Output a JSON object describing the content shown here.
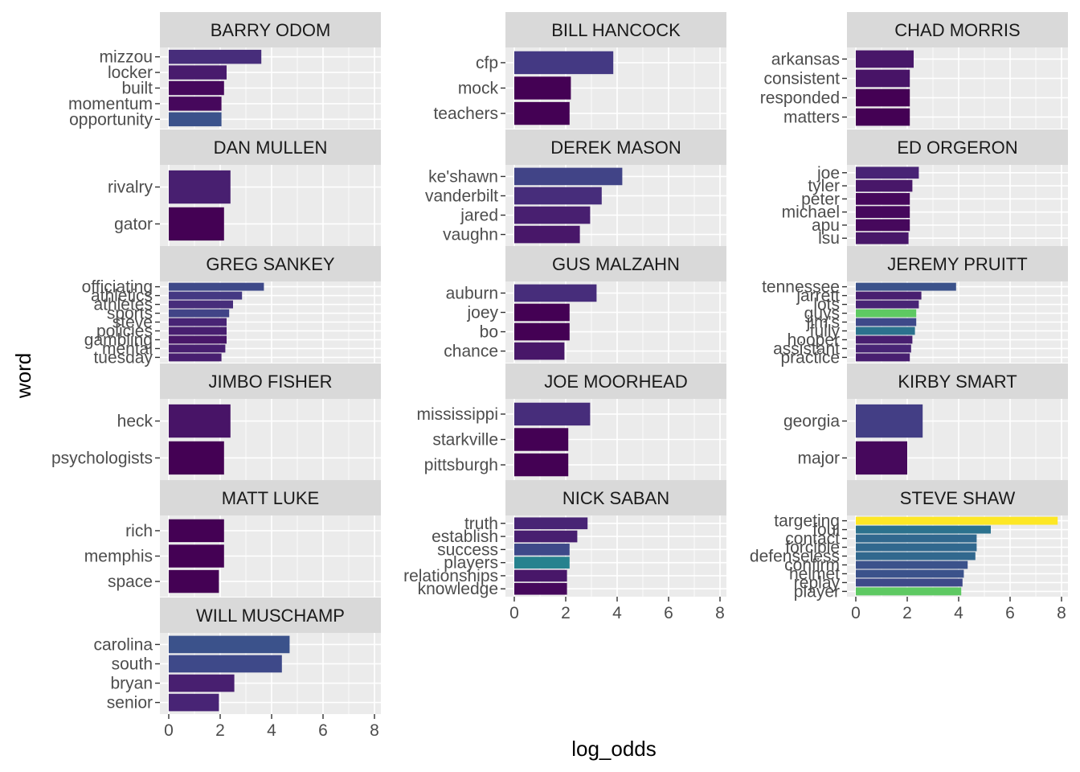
{
  "chart_data": {
    "type": "bar",
    "orientation": "horizontal",
    "xlabel": "log_odds",
    "ylabel": "word",
    "xlim": [
      0,
      8
    ],
    "x_ticks": [
      "0",
      "2",
      "4",
      "6",
      "8"
    ],
    "grid": true,
    "legend": "none",
    "color_scale": {
      "name": "viridis",
      "stops": [
        "#440154",
        "#482878",
        "#3e4989",
        "#31688e",
        "#26828e",
        "#1f9e89",
        "#35b779",
        "#6ece58",
        "#b5de2b",
        "#fde725"
      ]
    },
    "facets": [
      {
        "name": "BARRY ODOM",
        "bars": [
          {
            "word": "mizzou",
            "value": 3.6,
            "color": "#472d7b"
          },
          {
            "word": "locker",
            "value": 2.25,
            "color": "#481b6d"
          },
          {
            "word": "built",
            "value": 2.15,
            "color": "#46085c"
          },
          {
            "word": "momentum",
            "value": 2.05,
            "color": "#46085c"
          },
          {
            "word": "opportunity",
            "value": 2.05,
            "color": "#3b528b"
          }
        ]
      },
      {
        "name": "BILL HANCOCK",
        "bars": [
          {
            "word": "cfp",
            "value": 3.85,
            "color": "#443983"
          },
          {
            "word": "mock",
            "value": 2.2,
            "color": "#440154"
          },
          {
            "word": "teachers",
            "value": 2.15,
            "color": "#440154"
          }
        ]
      },
      {
        "name": "CHAD MORRIS",
        "bars": [
          {
            "word": "arkansas",
            "value": 2.25,
            "color": "#481769"
          },
          {
            "word": "consistent",
            "value": 2.1,
            "color": "#481467"
          },
          {
            "word": "responded",
            "value": 2.1,
            "color": "#440154"
          },
          {
            "word": "matters",
            "value": 2.1,
            "color": "#440154"
          }
        ]
      },
      {
        "name": "DAN MULLEN",
        "bars": [
          {
            "word": "rivalry",
            "value": 2.4,
            "color": "#481f70"
          },
          {
            "word": "gator",
            "value": 2.15,
            "color": "#440154"
          }
        ]
      },
      {
        "name": "DEREK MASON",
        "bars": [
          {
            "word": "ke'shawn",
            "value": 4.2,
            "color": "#414487"
          },
          {
            "word": "vanderbilt",
            "value": 3.4,
            "color": "#472d7b"
          },
          {
            "word": "jared",
            "value": 2.95,
            "color": "#481f70"
          },
          {
            "word": "vaughn",
            "value": 2.55,
            "color": "#481769"
          }
        ]
      },
      {
        "name": "ED ORGERON",
        "bars": [
          {
            "word": "joe",
            "value": 2.45,
            "color": "#482475"
          },
          {
            "word": "tyler",
            "value": 2.2,
            "color": "#481769"
          },
          {
            "word": "peter",
            "value": 2.1,
            "color": "#46085c"
          },
          {
            "word": "michael",
            "value": 2.1,
            "color": "#46085c"
          },
          {
            "word": "apu",
            "value": 2.1,
            "color": "#46085c"
          },
          {
            "word": "lsu",
            "value": 2.05,
            "color": "#481769"
          }
        ]
      },
      {
        "name": "GREG SANKEY",
        "bars": [
          {
            "word": "officiating",
            "value": 3.7,
            "color": "#3e4989"
          },
          {
            "word": "athletics",
            "value": 2.85,
            "color": "#443983"
          },
          {
            "word": "athletes",
            "value": 2.5,
            "color": "#472d7b"
          },
          {
            "word": "sports",
            "value": 2.35,
            "color": "#414487"
          },
          {
            "word": "steve",
            "value": 2.25,
            "color": "#482475"
          },
          {
            "word": "policies",
            "value": 2.25,
            "color": "#481f70"
          },
          {
            "word": "gambling",
            "value": 2.25,
            "color": "#481769"
          },
          {
            "word": "mental",
            "value": 2.2,
            "color": "#481f70"
          },
          {
            "word": "tuesday",
            "value": 2.05,
            "color": "#481f70"
          }
        ]
      },
      {
        "name": "GUS MALZAHN",
        "bars": [
          {
            "word": "auburn",
            "value": 3.2,
            "color": "#472d7b"
          },
          {
            "word": "joey",
            "value": 2.15,
            "color": "#440154"
          },
          {
            "word": "bo",
            "value": 2.15,
            "color": "#440154"
          },
          {
            "word": "chance",
            "value": 1.95,
            "color": "#481769"
          }
        ]
      },
      {
        "name": "JEREMY PRUITT",
        "bars": [
          {
            "word": "tennessee",
            "value": 3.9,
            "color": "#3b528b"
          },
          {
            "word": "jarrett",
            "value": 2.55,
            "color": "#481f70"
          },
          {
            "word": "lots",
            "value": 2.45,
            "color": "#482475"
          },
          {
            "word": "guys",
            "value": 2.35,
            "color": "#5ec962"
          },
          {
            "word": "jim's",
            "value": 2.35,
            "color": "#3e4989"
          },
          {
            "word": "fully",
            "value": 2.3,
            "color": "#2c728e"
          },
          {
            "word": "hooper",
            "value": 2.2,
            "color": "#481f70"
          },
          {
            "word": "assistant",
            "value": 2.15,
            "color": "#482475"
          },
          {
            "word": "practice",
            "value": 2.1,
            "color": "#481f70"
          }
        ]
      },
      {
        "name": "JIMBO FISHER",
        "bars": [
          {
            "word": "heck",
            "value": 2.4,
            "color": "#481467"
          },
          {
            "word": "psychologists",
            "value": 2.15,
            "color": "#440154"
          }
        ]
      },
      {
        "name": "JOE MOORHEAD",
        "bars": [
          {
            "word": "mississippi",
            "value": 2.95,
            "color": "#472d7b"
          },
          {
            "word": "starkville",
            "value": 2.1,
            "color": "#440154"
          },
          {
            "word": "pittsburgh",
            "value": 2.1,
            "color": "#440154"
          }
        ]
      },
      {
        "name": "KIRBY SMART",
        "bars": [
          {
            "word": "georgia",
            "value": 2.6,
            "color": "#433e85"
          },
          {
            "word": "major",
            "value": 2.0,
            "color": "#46085c"
          }
        ]
      },
      {
        "name": "MATT LUKE",
        "bars": [
          {
            "word": "rich",
            "value": 2.15,
            "color": "#440154"
          },
          {
            "word": "memphis",
            "value": 2.15,
            "color": "#440154"
          },
          {
            "word": "space",
            "value": 1.95,
            "color": "#440154"
          }
        ]
      },
      {
        "name": "NICK SABAN",
        "bars": [
          {
            "word": "truth",
            "value": 2.85,
            "color": "#482475"
          },
          {
            "word": "establish",
            "value": 2.45,
            "color": "#481f70"
          },
          {
            "word": "success",
            "value": 2.15,
            "color": "#3e4989"
          },
          {
            "word": "players",
            "value": 2.15,
            "color": "#26828e"
          },
          {
            "word": "relationships",
            "value": 2.05,
            "color": "#481769"
          },
          {
            "word": "knowledge",
            "value": 2.05,
            "color": "#46085c"
          }
        ]
      },
      {
        "name": "STEVE SHAW",
        "bars": [
          {
            "word": "targeting",
            "value": 7.85,
            "color": "#fde725"
          },
          {
            "word": "foul",
            "value": 5.25,
            "color": "#2c728e"
          },
          {
            "word": "contact",
            "value": 4.7,
            "color": "#31688e"
          },
          {
            "word": "forcible",
            "value": 4.7,
            "color": "#31688e"
          },
          {
            "word": "defenseless",
            "value": 4.65,
            "color": "#31688e"
          },
          {
            "word": "confirm",
            "value": 4.35,
            "color": "#3b528b"
          },
          {
            "word": "helmet",
            "value": 4.2,
            "color": "#3b528b"
          },
          {
            "word": "replay",
            "value": 4.15,
            "color": "#3e4989"
          },
          {
            "word": "player",
            "value": 4.1,
            "color": "#5ec962"
          }
        ]
      },
      {
        "name": "WILL MUSCHAMP",
        "bars": [
          {
            "word": "carolina",
            "value": 4.7,
            "color": "#3b528b"
          },
          {
            "word": "south",
            "value": 4.4,
            "color": "#3e4989"
          },
          {
            "word": "bryan",
            "value": 2.55,
            "color": "#481f70"
          },
          {
            "word": "senior",
            "value": 1.95,
            "color": "#482475"
          }
        ]
      }
    ]
  }
}
